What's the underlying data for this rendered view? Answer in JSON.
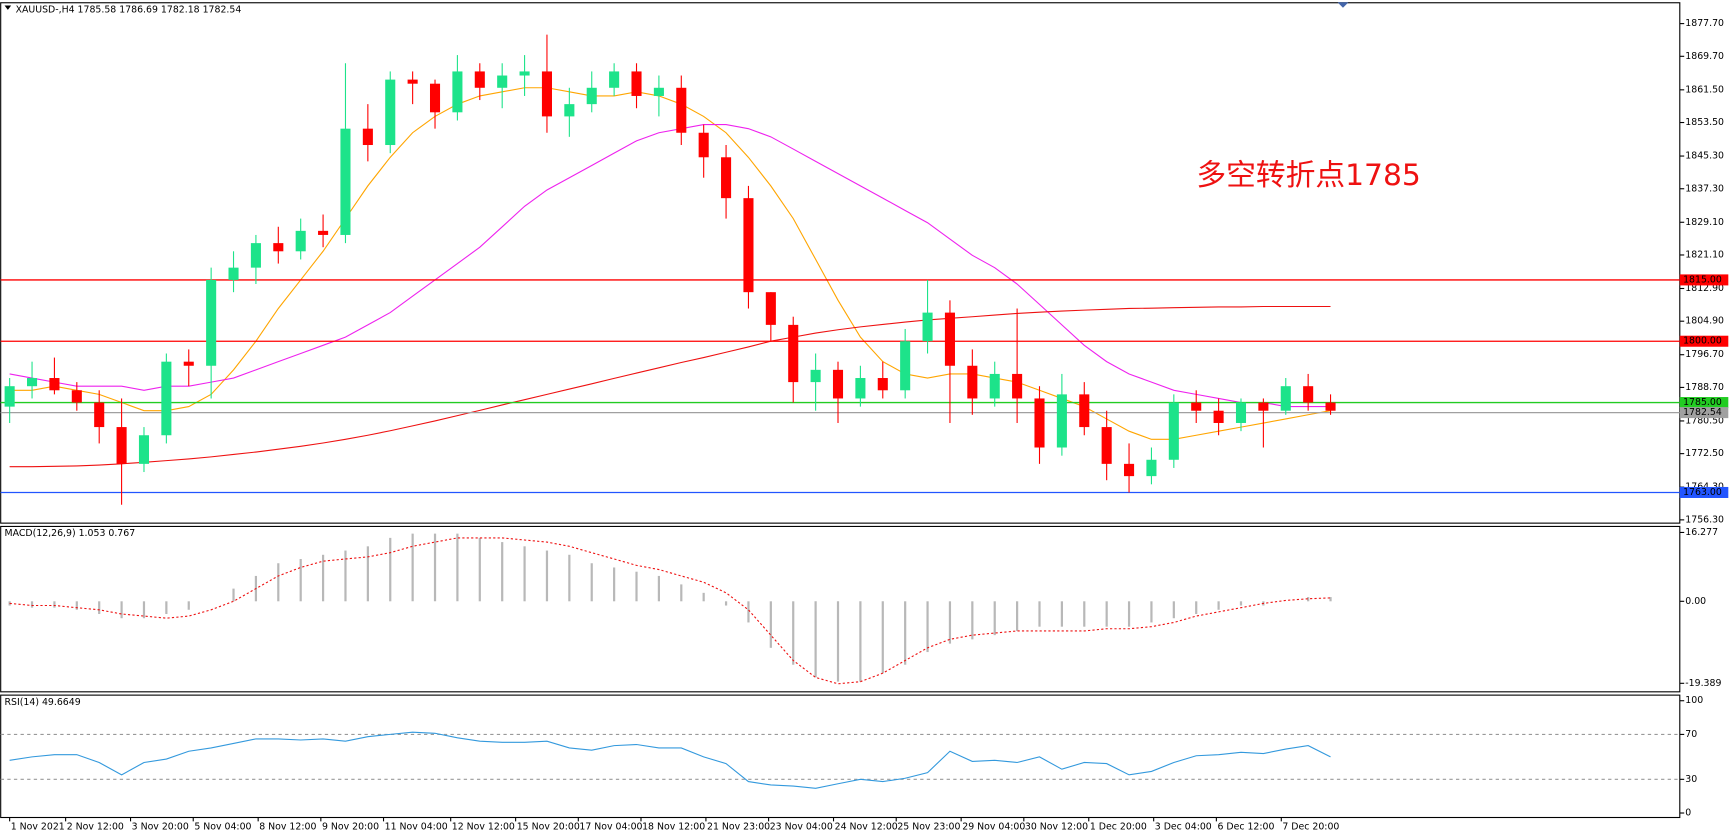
{
  "chart_data": [
    {
      "type": "candlestick",
      "title": "XAUUSD-,H4  1785.58 1786.69 1782.18 1782.54",
      "annotation": "多空转折点1785",
      "up_color": "#1de38a",
      "down_color": "#ff0000",
      "candles": [
        [
          1784,
          1791,
          1780,
          1789
        ],
        [
          1789,
          1795,
          1786,
          1791
        ],
        [
          1791,
          1796,
          1787,
          1788
        ],
        [
          1788,
          1790,
          1783,
          1785
        ],
        [
          1785,
          1788,
          1775,
          1779
        ],
        [
          1779,
          1786,
          1760,
          1770
        ],
        [
          1770,
          1779,
          1768,
          1777
        ],
        [
          1777,
          1797,
          1775,
          1795
        ],
        [
          1795,
          1798,
          1789,
          1794
        ],
        [
          1794,
          1818,
          1786,
          1815
        ],
        [
          1815,
          1822,
          1812,
          1818
        ],
        [
          1818,
          1826,
          1814,
          1824
        ],
        [
          1824,
          1828,
          1819,
          1822
        ],
        [
          1822,
          1830,
          1820,
          1827
        ],
        [
          1827,
          1831,
          1823,
          1826
        ],
        [
          1826,
          1868,
          1824,
          1852
        ],
        [
          1852,
          1858,
          1844,
          1848
        ],
        [
          1848,
          1866,
          1846,
          1864
        ],
        [
          1864,
          1866,
          1858,
          1863
        ],
        [
          1863,
          1864,
          1852,
          1856
        ],
        [
          1856,
          1870,
          1854,
          1866
        ],
        [
          1866,
          1868,
          1859,
          1862
        ],
        [
          1862,
          1868,
          1857,
          1865
        ],
        [
          1865,
          1870,
          1860,
          1866
        ],
        [
          1866,
          1875,
          1851,
          1855
        ],
        [
          1855,
          1862,
          1850,
          1858
        ],
        [
          1858,
          1866,
          1856,
          1862
        ],
        [
          1862,
          1868,
          1860,
          1866
        ],
        [
          1866,
          1868,
          1857,
          1860
        ],
        [
          1860,
          1865,
          1855,
          1862
        ],
        [
          1862,
          1865,
          1848,
          1851
        ],
        [
          1851,
          1853,
          1840,
          1845
        ],
        [
          1845,
          1848,
          1830,
          1835
        ],
        [
          1835,
          1838,
          1808,
          1812
        ],
        [
          1812,
          1812,
          1800,
          1804
        ],
        [
          1804,
          1806,
          1785,
          1790
        ],
        [
          1790,
          1797,
          1783,
          1793
        ],
        [
          1793,
          1795,
          1780,
          1786
        ],
        [
          1786,
          1794,
          1784,
          1791
        ],
        [
          1791,
          1795,
          1786,
          1788
        ],
        [
          1788,
          1803,
          1786,
          1800
        ],
        [
          1800,
          1815,
          1797,
          1807
        ],
        [
          1807,
          1810,
          1780,
          1794
        ],
        [
          1794,
          1798,
          1782,
          1786
        ],
        [
          1786,
          1795,
          1784,
          1792
        ],
        [
          1792,
          1808,
          1780,
          1786
        ],
        [
          1786,
          1789,
          1770,
          1774
        ],
        [
          1774,
          1792,
          1772,
          1787
        ],
        [
          1787,
          1790,
          1777,
          1779
        ],
        [
          1779,
          1783,
          1766,
          1770
        ],
        [
          1770,
          1775,
          1763,
          1767
        ],
        [
          1767,
          1774,
          1765,
          1771
        ],
        [
          1771,
          1787,
          1769,
          1785
        ],
        [
          1785,
          1788,
          1780,
          1783
        ],
        [
          1783,
          1786,
          1777,
          1780
        ],
        [
          1780,
          1786,
          1778,
          1785
        ],
        [
          1785,
          1786,
          1774,
          1783
        ],
        [
          1783,
          1791,
          1782,
          1789
        ],
        [
          1789,
          1792,
          1783,
          1785
        ],
        [
          1785,
          1787,
          1782,
          1783
        ]
      ],
      "series": [
        {
          "color": "#ffa500",
          "values": [
            1788,
            1788,
            1789,
            1788,
            1787,
            1785,
            1783,
            1783,
            1784,
            1787,
            1793,
            1800,
            1808,
            1815,
            1822,
            1830,
            1838,
            1845,
            1851,
            1855,
            1858,
            1860,
            1861,
            1862,
            1862,
            1861,
            1860,
            1860,
            1861,
            1860,
            1858,
            1855,
            1851,
            1845,
            1838,
            1830,
            1820,
            1810,
            1801,
            1795,
            1792,
            1791,
            1792,
            1792,
            1791,
            1790,
            1788,
            1786,
            1784,
            1781,
            1778,
            1776,
            1776,
            1777,
            1778,
            1779,
            1780,
            1781,
            1782,
            1783
          ]
        },
        {
          "color": "#ee22ee",
          "values": [
            1792,
            1791,
            1790,
            1789,
            1789,
            1789,
            1788,
            1789,
            1789,
            1790,
            1791,
            1793,
            1795,
            1797,
            1799,
            1801,
            1804,
            1807,
            1811,
            1815,
            1819,
            1823,
            1828,
            1833,
            1837,
            1840,
            1843,
            1846,
            1849,
            1851,
            1852,
            1853,
            1853,
            1852,
            1850,
            1847,
            1844,
            1841,
            1838,
            1835,
            1832,
            1829,
            1825,
            1821,
            1818,
            1814,
            1809,
            1804,
            1799,
            1795,
            1792,
            1790,
            1788,
            1787,
            1786,
            1785,
            1785,
            1784,
            1784,
            1784
          ]
        },
        {
          "color": "#ee1111",
          "values": [
            1769.3,
            1769.3,
            1769.4,
            1769.5,
            1769.7,
            1770,
            1770.4,
            1770.8,
            1771.2,
            1771.7,
            1772.3,
            1772.9,
            1773.6,
            1774.3,
            1775.1,
            1776,
            1777,
            1778.1,
            1779.3,
            1780.5,
            1781.8,
            1783.1,
            1784.4,
            1785.7,
            1787,
            1788.3,
            1789.6,
            1790.9,
            1792.2,
            1793.5,
            1794.8,
            1796,
            1797.3,
            1798.6,
            1800,
            1801,
            1802,
            1802.8,
            1803.5,
            1804.1,
            1804.7,
            1805.2,
            1805.6,
            1806,
            1806.4,
            1806.8,
            1807.1,
            1807.4,
            1807.6,
            1807.8,
            1808,
            1808.1,
            1808.2,
            1808.3,
            1808.4,
            1808.4,
            1808.5,
            1808.5,
            1808.5,
            1808.5
          ]
        }
      ],
      "levels": [
        {
          "value": 1815,
          "label": "1815.00",
          "color": "#ff0000"
        },
        {
          "value": 1800,
          "label": "1800.00",
          "color": "#ff0000"
        },
        {
          "value": 1785,
          "label": "1785.00",
          "color": "#22cc22"
        },
        {
          "value": 1782.54,
          "label": "1782.54",
          "color": "#a0a0a0"
        },
        {
          "value": 1763,
          "label": "1763.00",
          "color": "#2255ff"
        }
      ],
      "xlim": [
        -0.4,
        74.6
      ],
      "ylim": [
        1755.5,
        1882.8
      ],
      "yticks": [
        {
          "value": 1877.7,
          "label": "1877.70"
        },
        {
          "value": 1869.7,
          "label": "1869.70"
        },
        {
          "value": 1861.5,
          "label": "1861.50"
        },
        {
          "value": 1853.5,
          "label": "1853.50"
        },
        {
          "value": 1845.3,
          "label": "1845.30"
        },
        {
          "value": 1837.3,
          "label": "1837.30"
        },
        {
          "value": 1829.1,
          "label": "1829.10"
        },
        {
          "value": 1821.1,
          "label": "1821.10"
        },
        {
          "value": 1812.9,
          "label": "1812.90"
        },
        {
          "value": 1804.9,
          "label": "1804.90"
        },
        {
          "value": 1796.7,
          "label": "1796.70"
        },
        {
          "value": 1788.7,
          "label": "1788.70"
        },
        {
          "value": 1780.5,
          "label": "1780.50"
        },
        {
          "value": 1772.5,
          "label": "1772.50"
        },
        {
          "value": 1764.3,
          "label": "1764.30"
        },
        {
          "value": 1756.3,
          "label": "1756.30"
        }
      ],
      "xticks": [
        {
          "value": 0,
          "label": "1 Nov 2021"
        },
        {
          "value": 2.5,
          "label": "2 Nov 12:00"
        },
        {
          "value": 5.4,
          "label": "3 Nov 20:00"
        },
        {
          "value": 8.2,
          "label": "5 Nov 04:00"
        },
        {
          "value": 11.1,
          "label": "8 Nov 12:00"
        },
        {
          "value": 13.9,
          "label": "9 Nov 20:00"
        },
        {
          "value": 16.7,
          "label": "11 Nov 04:00"
        },
        {
          "value": 19.7,
          "label": "12 Nov 12:00"
        },
        {
          "value": 22.6,
          "label": "15 Nov 20:00"
        },
        {
          "value": 25.4,
          "label": "17 Nov 04:00"
        },
        {
          "value": 28.2,
          "label": "18 Nov 12:00"
        },
        {
          "value": 31.1,
          "label": "21 Nov 23:00"
        },
        {
          "value": 33.9,
          "label": "23 Nov 04:00"
        },
        {
          "value": 36.8,
          "label": "24 Nov 12:00"
        },
        {
          "value": 39.6,
          "label": "25 Nov 23:00"
        },
        {
          "value": 42.5,
          "label": "29 Nov 04:00"
        },
        {
          "value": 45.3,
          "label": "30 Nov 12:00"
        },
        {
          "value": 48.2,
          "label": "1 Dec 20:00"
        },
        {
          "value": 51.1,
          "label": "3 Dec 04:00"
        },
        {
          "value": 53.9,
          "label": "6 Dec 12:00"
        },
        {
          "value": 56.8,
          "label": "7 Dec 20:00"
        }
      ]
    },
    {
      "type": "macd",
      "title": "MACD(12,26,9) 1.053 0.767",
      "histogram": {
        "color": "#b8b8b8",
        "values": [
          -1,
          -1.5,
          -1.5,
          -2,
          -3,
          -4,
          -4,
          -3,
          -2,
          0,
          3,
          6,
          9,
          10,
          11,
          12,
          13,
          15,
          16,
          16,
          16,
          15,
          14,
          13,
          12,
          11,
          9,
          8,
          7,
          6,
          4,
          2,
          -1,
          -5,
          -11,
          -15,
          -18,
          -19,
          -19,
          -17,
          -15,
          -12,
          -10,
          -9,
          -8,
          -7,
          -6,
          -6,
          -6,
          -6,
          -6,
          -5,
          -4,
          -3,
          -2,
          -1,
          -1,
          0,
          1,
          1
        ]
      },
      "signal": {
        "color": "#ee1111",
        "values": [
          -0.5,
          -1,
          -1,
          -1.5,
          -2,
          -3,
          -3.5,
          -4,
          -3.5,
          -2,
          0,
          3,
          6,
          8,
          9.5,
          10,
          10.5,
          11.5,
          13,
          14,
          15,
          15,
          15,
          14.5,
          14,
          13,
          11.5,
          10,
          8.5,
          7.5,
          6,
          4.5,
          2,
          -2,
          -8,
          -14,
          -18,
          -19.5,
          -19,
          -17,
          -14,
          -11,
          -9,
          -8,
          -7.5,
          -7,
          -7,
          -7,
          -7,
          -6.5,
          -6.5,
          -6,
          -5,
          -3.5,
          -2.5,
          -1.5,
          -0.5,
          0.2,
          0.6,
          0.8
        ]
      },
      "ylim": [
        -21.4,
        17.7
      ],
      "yticks": [
        16.277,
        {
          "value": 0,
          "label": "0.00"
        },
        -19.389
      ]
    },
    {
      "type": "line",
      "title": "RSI(14) 49.6649",
      "series": [
        {
          "color": "#3399dd",
          "values": [
            47,
            50,
            52,
            52,
            45,
            34,
            45,
            48,
            55,
            58,
            62,
            66,
            66,
            65,
            66,
            64,
            68,
            70,
            72,
            71,
            67,
            64,
            63,
            63,
            64,
            58,
            56,
            60,
            61,
            58,
            58,
            50,
            44,
            28,
            25,
            24,
            22,
            26,
            30,
            28,
            31,
            36,
            55,
            46,
            47,
            45,
            50,
            39,
            45,
            44,
            34,
            37,
            45,
            51,
            52,
            54,
            53,
            57,
            60,
            50
          ]
        }
      ],
      "levels": [
        30,
        70
      ],
      "ylim": [
        -4,
        105
      ],
      "yticks": [
        0,
        30,
        70,
        100
      ]
    }
  ]
}
